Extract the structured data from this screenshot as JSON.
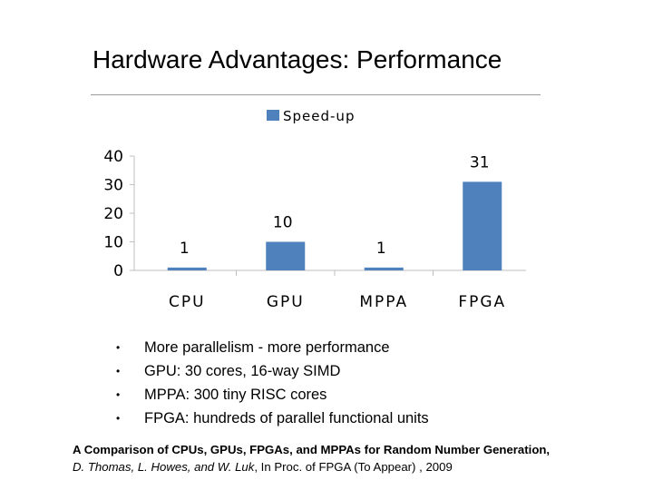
{
  "slide": {
    "title": "Hardware Advantages: Performance"
  },
  "chart_data": {
    "type": "bar",
    "title": "",
    "categories": [
      "CPU",
      "GPU",
      "MPPA",
      "FPGA"
    ],
    "series": [
      {
        "name": "Speed-up",
        "values": [
          1,
          10,
          1,
          31
        ]
      }
    ],
    "value_labels": [
      "1",
      "10",
      "1",
      "31"
    ],
    "legend": "top",
    "yticks": [
      "0",
      "10",
      "20",
      "30",
      "40"
    ],
    "ylim": [
      0,
      40
    ],
    "xlabel": "",
    "ylabel": "",
    "grid": false,
    "bar_color": "#4f81bd"
  },
  "bullets": [
    {
      "marker": "•",
      "text": "More parallelism - more performance"
    },
    {
      "marker": "•",
      "text": "GPU: 30 cores, 16-way SIMD"
    },
    {
      "marker": "•",
      "text": "MPPA: 300 tiny RISC cores"
    },
    {
      "marker": "•",
      "text": "FPGA: hundreds of parallel functional units"
    }
  ],
  "citation": {
    "paper": "A Comparison of CPUs, GPUs, FPGAs, and MPPAs for Random Number Generation,",
    "authors": "D. Thomas, L. Howes, and W. Luk",
    "venue": ", In Proc. of FPGA (To Appear) , 2009"
  }
}
